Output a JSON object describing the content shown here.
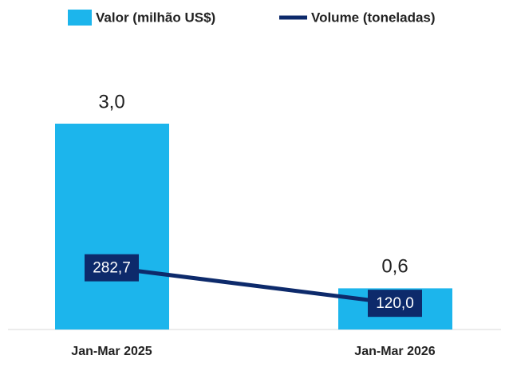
{
  "chart_data": {
    "type": "bar",
    "categories": [
      "Jan-Mar 2025",
      "Jan-Mar 2026"
    ],
    "series": [
      {
        "name": "Valor (milhão US$)",
        "type": "bar",
        "color": "#1cb5ec",
        "values": [
          3.0,
          0.6
        ],
        "value_labels": [
          "3,0",
          "0,6"
        ]
      },
      {
        "name": "Volume (toneladas)",
        "type": "line",
        "axis": "y2",
        "color": "#0d2a6b",
        "values": [
          282.7,
          120.0
        ],
        "value_labels": [
          "282,7",
          "120,0"
        ]
      }
    ],
    "ylim": [
      0,
      3.5
    ],
    "y2lim": [
      0,
      1100
    ]
  }
}
